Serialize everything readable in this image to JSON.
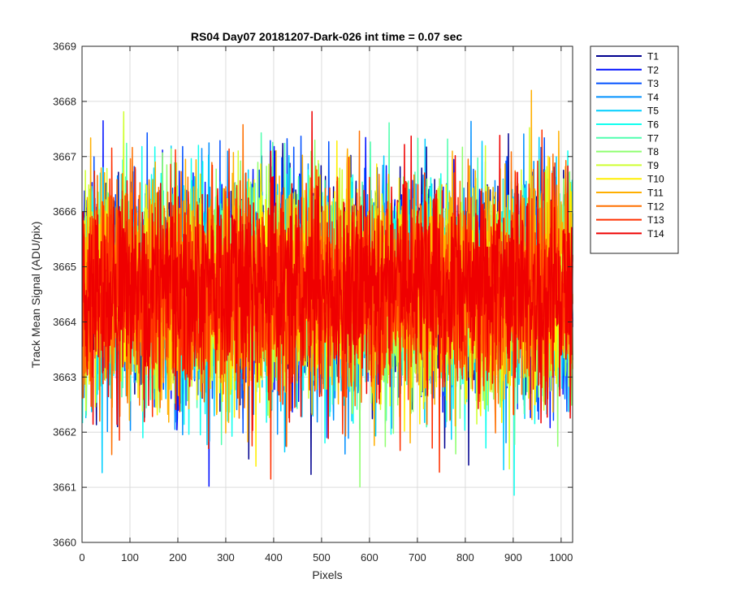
{
  "chart_data": {
    "type": "line",
    "title": "RS04 Day07 20181207-Dark-026 int time = 0.07 sec",
    "xlabel": "Pixels",
    "ylabel": "Track Mean Signal (ADU/pix)",
    "xlim": [
      0,
      1024
    ],
    "ylim": [
      3660,
      3669
    ],
    "xticks": [
      0,
      100,
      200,
      300,
      400,
      500,
      600,
      700,
      800,
      900,
      1000
    ],
    "yticks": [
      3660,
      3661,
      3662,
      3663,
      3664,
      3665,
      3666,
      3667,
      3668,
      3669
    ],
    "grid": true,
    "legend_position": "outside-right",
    "noise_summary": {
      "mean": 3664.6,
      "sigma": 0.95,
      "x_start": 1,
      "x_end": 1024,
      "approx_min": 3660.65,
      "approx_max": 3668.2
    },
    "series": [
      {
        "name": "T1",
        "color": "#00008f",
        "seed": 11
      },
      {
        "name": "T2",
        "color": "#0010ff",
        "seed": 23
      },
      {
        "name": "T3",
        "color": "#0050ff",
        "seed": 37
      },
      {
        "name": "T4",
        "color": "#0090ff",
        "seed": 41
      },
      {
        "name": "T5",
        "color": "#00cfff",
        "seed": 53
      },
      {
        "name": "T6",
        "color": "#10ffef",
        "seed": 67
      },
      {
        "name": "T7",
        "color": "#50ffaf",
        "seed": 71
      },
      {
        "name": "T8",
        "color": "#8fff70",
        "seed": 83
      },
      {
        "name": "T9",
        "color": "#cfff30",
        "seed": 97
      },
      {
        "name": "T10",
        "color": "#ffef00",
        "seed": 101
      },
      {
        "name": "T11",
        "color": "#ffaf00",
        "seed": 113
      },
      {
        "name": "T12",
        "color": "#ff7000",
        "seed": 127
      },
      {
        "name": "T13",
        "color": "#ff3000",
        "seed": 131
      },
      {
        "name": "T14",
        "color": "#ef0000",
        "seed": 149
      }
    ]
  }
}
